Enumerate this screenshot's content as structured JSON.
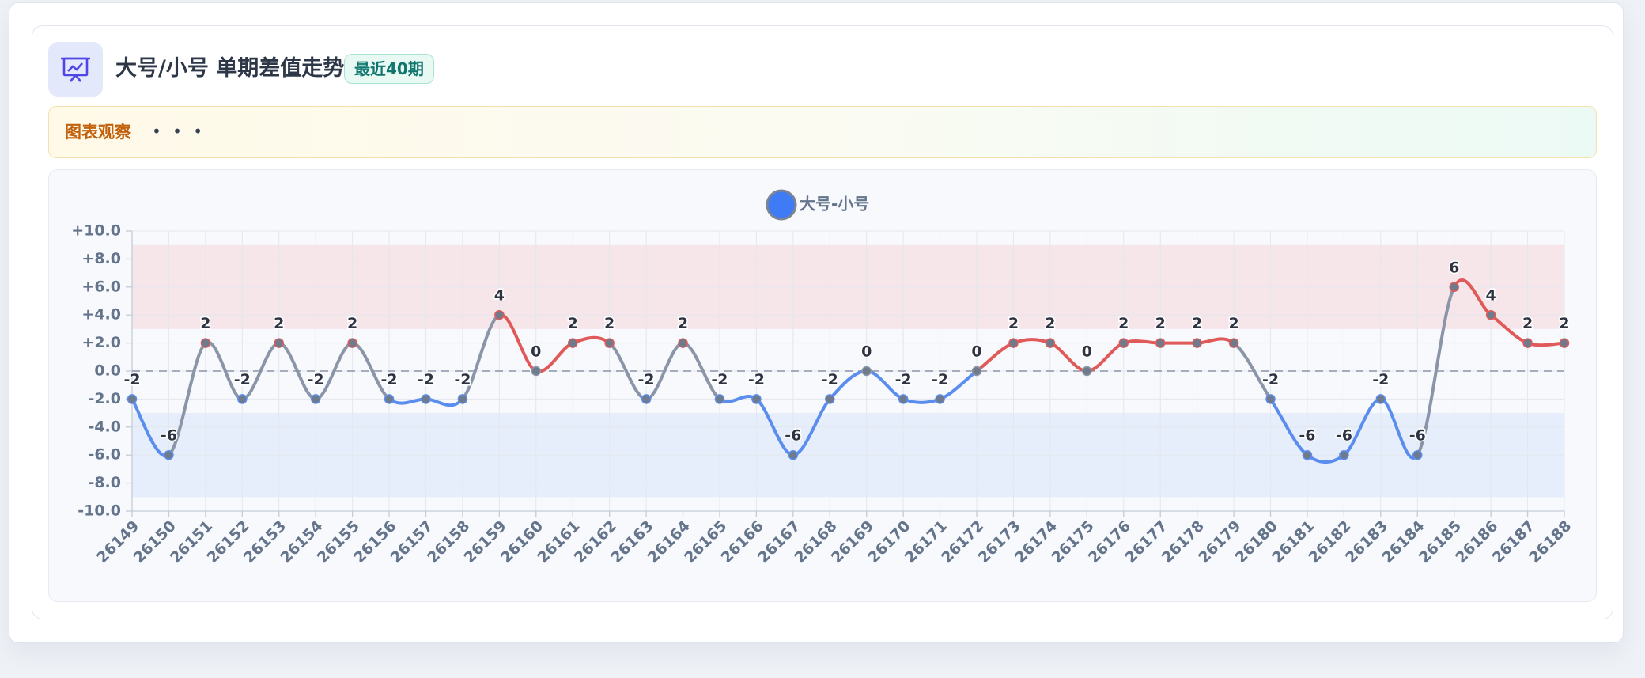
{
  "chart_data": {
    "type": "line",
    "title": "大号/小号 单期差值走势",
    "subtitle": "最近40期",
    "categories": [
      "26149",
      "26150",
      "26151",
      "26152",
      "26153",
      "26154",
      "26155",
      "26156",
      "26157",
      "26158",
      "26159",
      "26160",
      "26161",
      "26162",
      "26163",
      "26164",
      "26165",
      "26166",
      "26167",
      "26168",
      "26169",
      "26170",
      "26171",
      "26172",
      "26173",
      "26174",
      "26175",
      "26176",
      "26177",
      "26178",
      "26179",
      "26180",
      "26181",
      "26182",
      "26183",
      "26184",
      "26185",
      "26186",
      "26187",
      "26188"
    ],
    "series": [
      {
        "name": "大号-小号",
        "color": "#3f7bf4",
        "values": [
          -2,
          -6,
          2,
          -2,
          2,
          -2,
          2,
          -2,
          -2,
          -2,
          4,
          0,
          2,
          2,
          -2,
          2,
          -2,
          -2,
          -6,
          -2,
          0,
          -2,
          -2,
          0,
          2,
          2,
          0,
          2,
          2,
          2,
          2,
          -2,
          -6,
          -6,
          -2,
          -6,
          6,
          4,
          2,
          2
        ]
      }
    ],
    "up_color": "#e05a5a",
    "down_color": "#5b8def",
    "cross_color": "#8a96a8",
    "marker_color": "#6f7a8a",
    "ylim": [
      -10,
      10
    ],
    "yticks": [
      {
        "value": -10,
        "label": "-10.0"
      },
      {
        "value": -8,
        "label": "-8.0"
      },
      {
        "value": -6,
        "label": "-6.0"
      },
      {
        "value": -4,
        "label": "-4.0"
      },
      {
        "value": -2,
        "label": "-2.0"
      },
      {
        "value": 0,
        "label": "0.0"
      },
      {
        "value": 2,
        "label": "+2.0"
      },
      {
        "value": 4,
        "label": "+4.0"
      },
      {
        "value": 6,
        "label": "+6.0"
      },
      {
        "value": 8,
        "label": "+8.0"
      },
      {
        "value": 10,
        "label": "+10.0"
      }
    ],
    "bands": [
      {
        "from": 3,
        "to": 9,
        "color": "#f6e6ea"
      },
      {
        "from": -3,
        "to": -9,
        "color": "#e7eefb"
      }
    ],
    "zero_line": 0,
    "grid": true
  },
  "observation": {
    "label": "图表观察",
    "text": "• • •"
  }
}
